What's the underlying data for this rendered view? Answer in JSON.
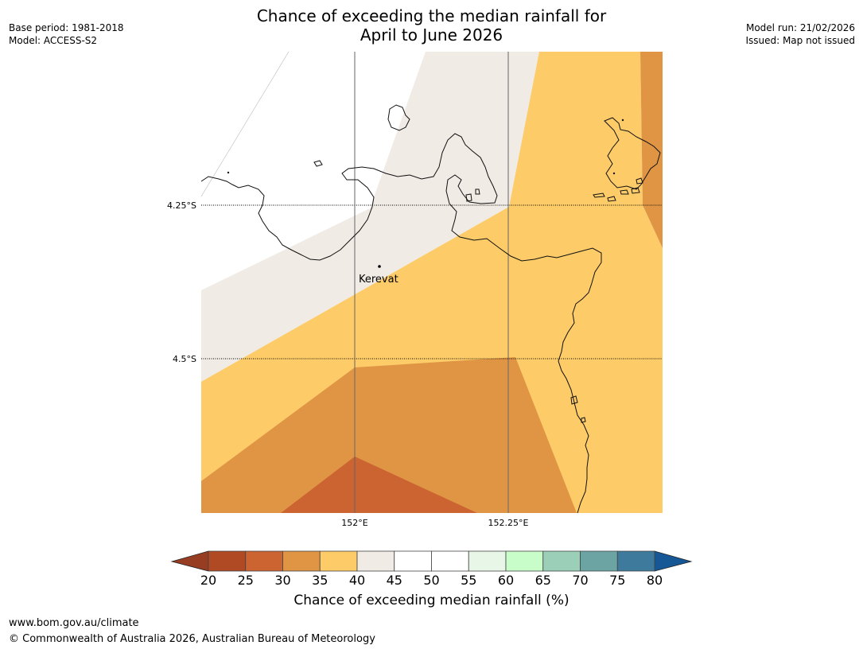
{
  "header": {
    "title_line1": "Chance of exceeding the median rainfall for",
    "title_line2": "April to June 2026",
    "base_period": "Base period: 1981-2018",
    "model": "Model: ACCESS-S2",
    "model_run": "Model run: 21/02/2026",
    "issued": "Issued: Map not issued"
  },
  "map": {
    "lat_labels": [
      "4.25°S",
      "4.5°S"
    ],
    "lon_labels": [
      "152°E",
      "152.25°E"
    ],
    "place_label": "Kerevat",
    "zone_colors": {
      "25-30": "#cb6431",
      "30-35": "#e09545",
      "35-40": "#fdcb67",
      "40-45": "#f0ebe5",
      "45-55": "#ffffff"
    }
  },
  "colorbar": {
    "ticks": [
      "20",
      "25",
      "30",
      "35",
      "40",
      "45",
      "50",
      "55",
      "60",
      "65",
      "70",
      "75",
      "80"
    ],
    "colors": [
      "#b04a25",
      "#cb6431",
      "#e09545",
      "#fdcb67",
      "#f0ebe5",
      "#ffffff",
      "#ffffff",
      "#e8f6e8",
      "#c8fcc8",
      "#9ccfb7",
      "#6ca4a4",
      "#3d7a9b"
    ],
    "under_color": "#973d22",
    "over_color": "#165896",
    "label": "Chance of exceeding median rainfall (%)"
  },
  "footer": {
    "url": "www.bom.gov.au/climate",
    "copyright": "© Commonwealth of Australia 2026, Australian Bureau of Meteorology"
  }
}
